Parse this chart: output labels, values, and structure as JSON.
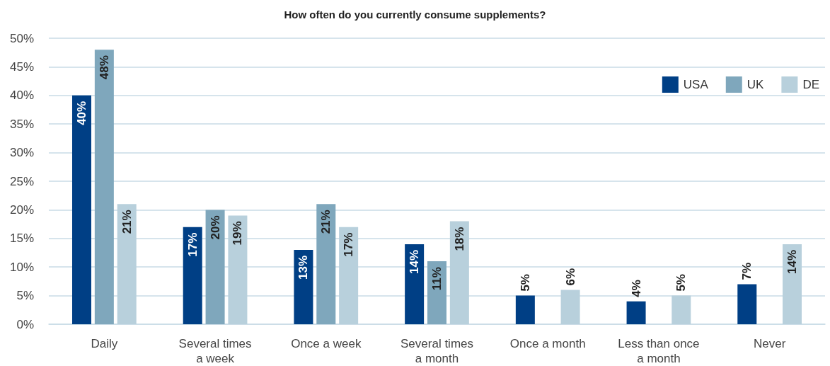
{
  "chart_data": {
    "type": "bar",
    "title": "How often do you currently consume supplements?",
    "categories": [
      "Daily",
      "Several times\na week",
      "Once a week",
      "Several times\na month",
      "Once a month",
      "Less than once\na month",
      "Never"
    ],
    "series": [
      {
        "name": "USA",
        "color": "#003f85",
        "values": [
          40,
          17,
          13,
          14,
          5,
          4,
          7
        ],
        "value_labels": [
          "40%",
          "17%",
          "13%",
          "14%",
          "5%",
          "4%",
          "7%"
        ]
      },
      {
        "name": "UK",
        "color": "#7fa7bc",
        "values": [
          48,
          20,
          21,
          11,
          null,
          null,
          null
        ],
        "value_labels": [
          "48%",
          "20%",
          "21%",
          "11%",
          null,
          null,
          null
        ]
      },
      {
        "name": "DE",
        "color": "#b8d0dc",
        "values": [
          21,
          19,
          17,
          18,
          6,
          5,
          14
        ],
        "value_labels": [
          "21%",
          "19%",
          "17%",
          "18%",
          "6%",
          "5%",
          "14%"
        ]
      }
    ],
    "ylim": [
      0,
      50
    ],
    "yticks": [
      {
        "value": 0,
        "label": "0%"
      },
      {
        "value": 5,
        "label": "5%"
      },
      {
        "value": 10,
        "label": "10%"
      },
      {
        "value": 15,
        "label": "15%"
      },
      {
        "value": 20,
        "label": "20%"
      },
      {
        "value": 25,
        "label": "25%"
      },
      {
        "value": 30,
        "label": "30%"
      },
      {
        "value": 35,
        "label": "35%"
      },
      {
        "value": 40,
        "label": "40%"
      },
      {
        "value": 45,
        "label": "45%"
      },
      {
        "value": 50,
        "label": "50%"
      }
    ],
    "grid": "y",
    "legend": "top right"
  }
}
